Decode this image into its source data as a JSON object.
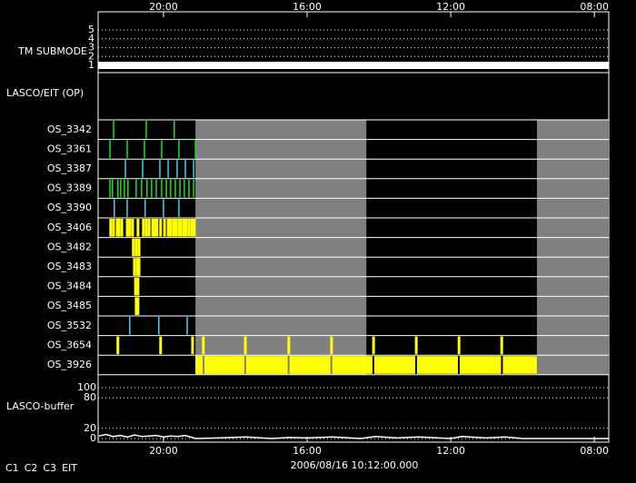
{
  "chart_data": {
    "type": "timeline",
    "xlim": [
      21.82,
      7.6
    ],
    "xticks": [
      {
        "value": 20,
        "label": "20:00"
      },
      {
        "value": 16,
        "label": "16:00"
      },
      {
        "value": 12,
        "label": "12:00"
      },
      {
        "value": 8,
        "label": "08:00"
      }
    ],
    "xlabel": "2006/08/16 10:12:00.000",
    "legend": [
      {
        "name": "C1",
        "color": "#ff2020"
      },
      {
        "name": "C2",
        "color": "#20e020"
      },
      {
        "name": "C3",
        "color": "#40d0f0"
      },
      {
        "name": "EIT",
        "color": "#ffffff"
      }
    ],
    "tm_submode": {
      "label": "TM SUBMODE",
      "ylim": [
        1,
        5
      ],
      "yticks": [
        1,
        2,
        3,
        4,
        5
      ],
      "level": 1,
      "x": [
        21.82,
        7.6
      ],
      "color": "#ffffff"
    },
    "lasco_eit": {
      "label": "LASCO/EIT (OP)"
    },
    "gaps": [
      [
        19.11,
        14.35
      ],
      [
        9.6,
        7.6
      ]
    ],
    "gap_color": "#808080",
    "rows": [
      {
        "name": "OS_3342",
        "color": "#20e020",
        "x": [
          21.39,
          20.48,
          19.7
        ]
      },
      {
        "name": "OS_3361",
        "color": "#20e020",
        "x": [
          21.49,
          21.01,
          20.53,
          20.05,
          19.57,
          19.11
        ]
      },
      {
        "name": "OS_3387",
        "color": "#40d0f0",
        "x": [
          21.06,
          20.58,
          20.1,
          19.87,
          19.62,
          19.39,
          19.16
        ]
      },
      {
        "name": "OS_3389",
        "color": "#20e020",
        "x": [
          21.49,
          21.42,
          21.27,
          21.19,
          21.09,
          20.99,
          20.76,
          20.61,
          20.46,
          20.33,
          20.2,
          20.05,
          19.92,
          19.8,
          19.67,
          19.54,
          19.42,
          19.29,
          19.16
        ]
      },
      {
        "name": "OS_3390",
        "color": "#40d0f0",
        "x": [
          21.37,
          21.01,
          20.51,
          20.0,
          19.57
        ]
      },
      {
        "name": "OS_3406",
        "color": "#ffff00",
        "x": [
          21.47,
          21.39,
          21.29,
          21.24,
          21.16,
          21.01,
          20.94,
          20.86,
          20.71,
          20.56,
          20.48,
          20.4,
          20.3,
          20.23,
          20.18,
          20.08,
          19.97,
          19.87,
          19.8,
          19.72,
          19.65,
          19.57,
          19.52,
          19.44,
          19.37,
          19.29,
          19.21,
          19.14
        ]
      },
      {
        "name": "OS_3482",
        "color": "#ffff00",
        "x": [
          20.84,
          20.76,
          20.68
        ]
      },
      {
        "name": "OS_3483",
        "color": "#ffff00",
        "x": [
          20.81,
          20.73,
          20.68
        ]
      },
      {
        "name": "OS_3484",
        "color": "#ffff00",
        "x": [
          20.78,
          20.71
        ]
      },
      {
        "name": "OS_3485",
        "color": "#ffff00",
        "x": [
          20.76,
          20.71
        ]
      },
      {
        "name": "OS_3532",
        "color": "#40d0f0",
        "x": [
          20.94,
          20.13,
          19.34
        ]
      },
      {
        "name": "OS_3654",
        "color": "#ffff00",
        "x": [
          21.27,
          20.08,
          19.19,
          18.89,
          17.72,
          16.51,
          15.32,
          14.15,
          12.96,
          11.77,
          10.58
        ]
      },
      {
        "name": "OS_3926",
        "color": "#ffff00",
        "spans": [
          [
            19.11,
            18.91
          ],
          [
            18.86,
            17.75
          ],
          [
            17.7,
            16.54
          ],
          [
            16.49,
            15.35
          ],
          [
            15.3,
            14.18
          ],
          [
            14.13,
            12.99
          ],
          [
            12.94,
            11.8
          ],
          [
            11.75,
            10.6
          ],
          [
            10.55,
            9.6
          ]
        ]
      }
    ],
    "buffer": {
      "label": "LASCO-buffer",
      "ylim": [
        0,
        100
      ],
      "yticks": [
        0,
        20,
        80,
        100
      ],
      "color": "#ffffff",
      "x": [
        21.8,
        21.6,
        21.4,
        21.2,
        21.0,
        20.8,
        20.6,
        20.4,
        20.2,
        20.0,
        19.8,
        19.6,
        19.4,
        19.2,
        19.1,
        18.5,
        17.7,
        17.0,
        16.5,
        16.0,
        15.3,
        14.5,
        14.1,
        13.5,
        12.9,
        12.0,
        11.7,
        11.0,
        10.5,
        10.0,
        9.6,
        8.5,
        7.6
      ],
      "values": [
        5,
        8,
        4,
        6,
        3,
        7,
        4,
        5,
        6,
        3,
        5,
        4,
        6,
        2,
        0,
        1,
        3,
        0,
        2,
        1,
        3,
        0,
        4,
        1,
        3,
        0,
        4,
        1,
        3,
        0,
        0,
        0,
        0
      ]
    }
  }
}
